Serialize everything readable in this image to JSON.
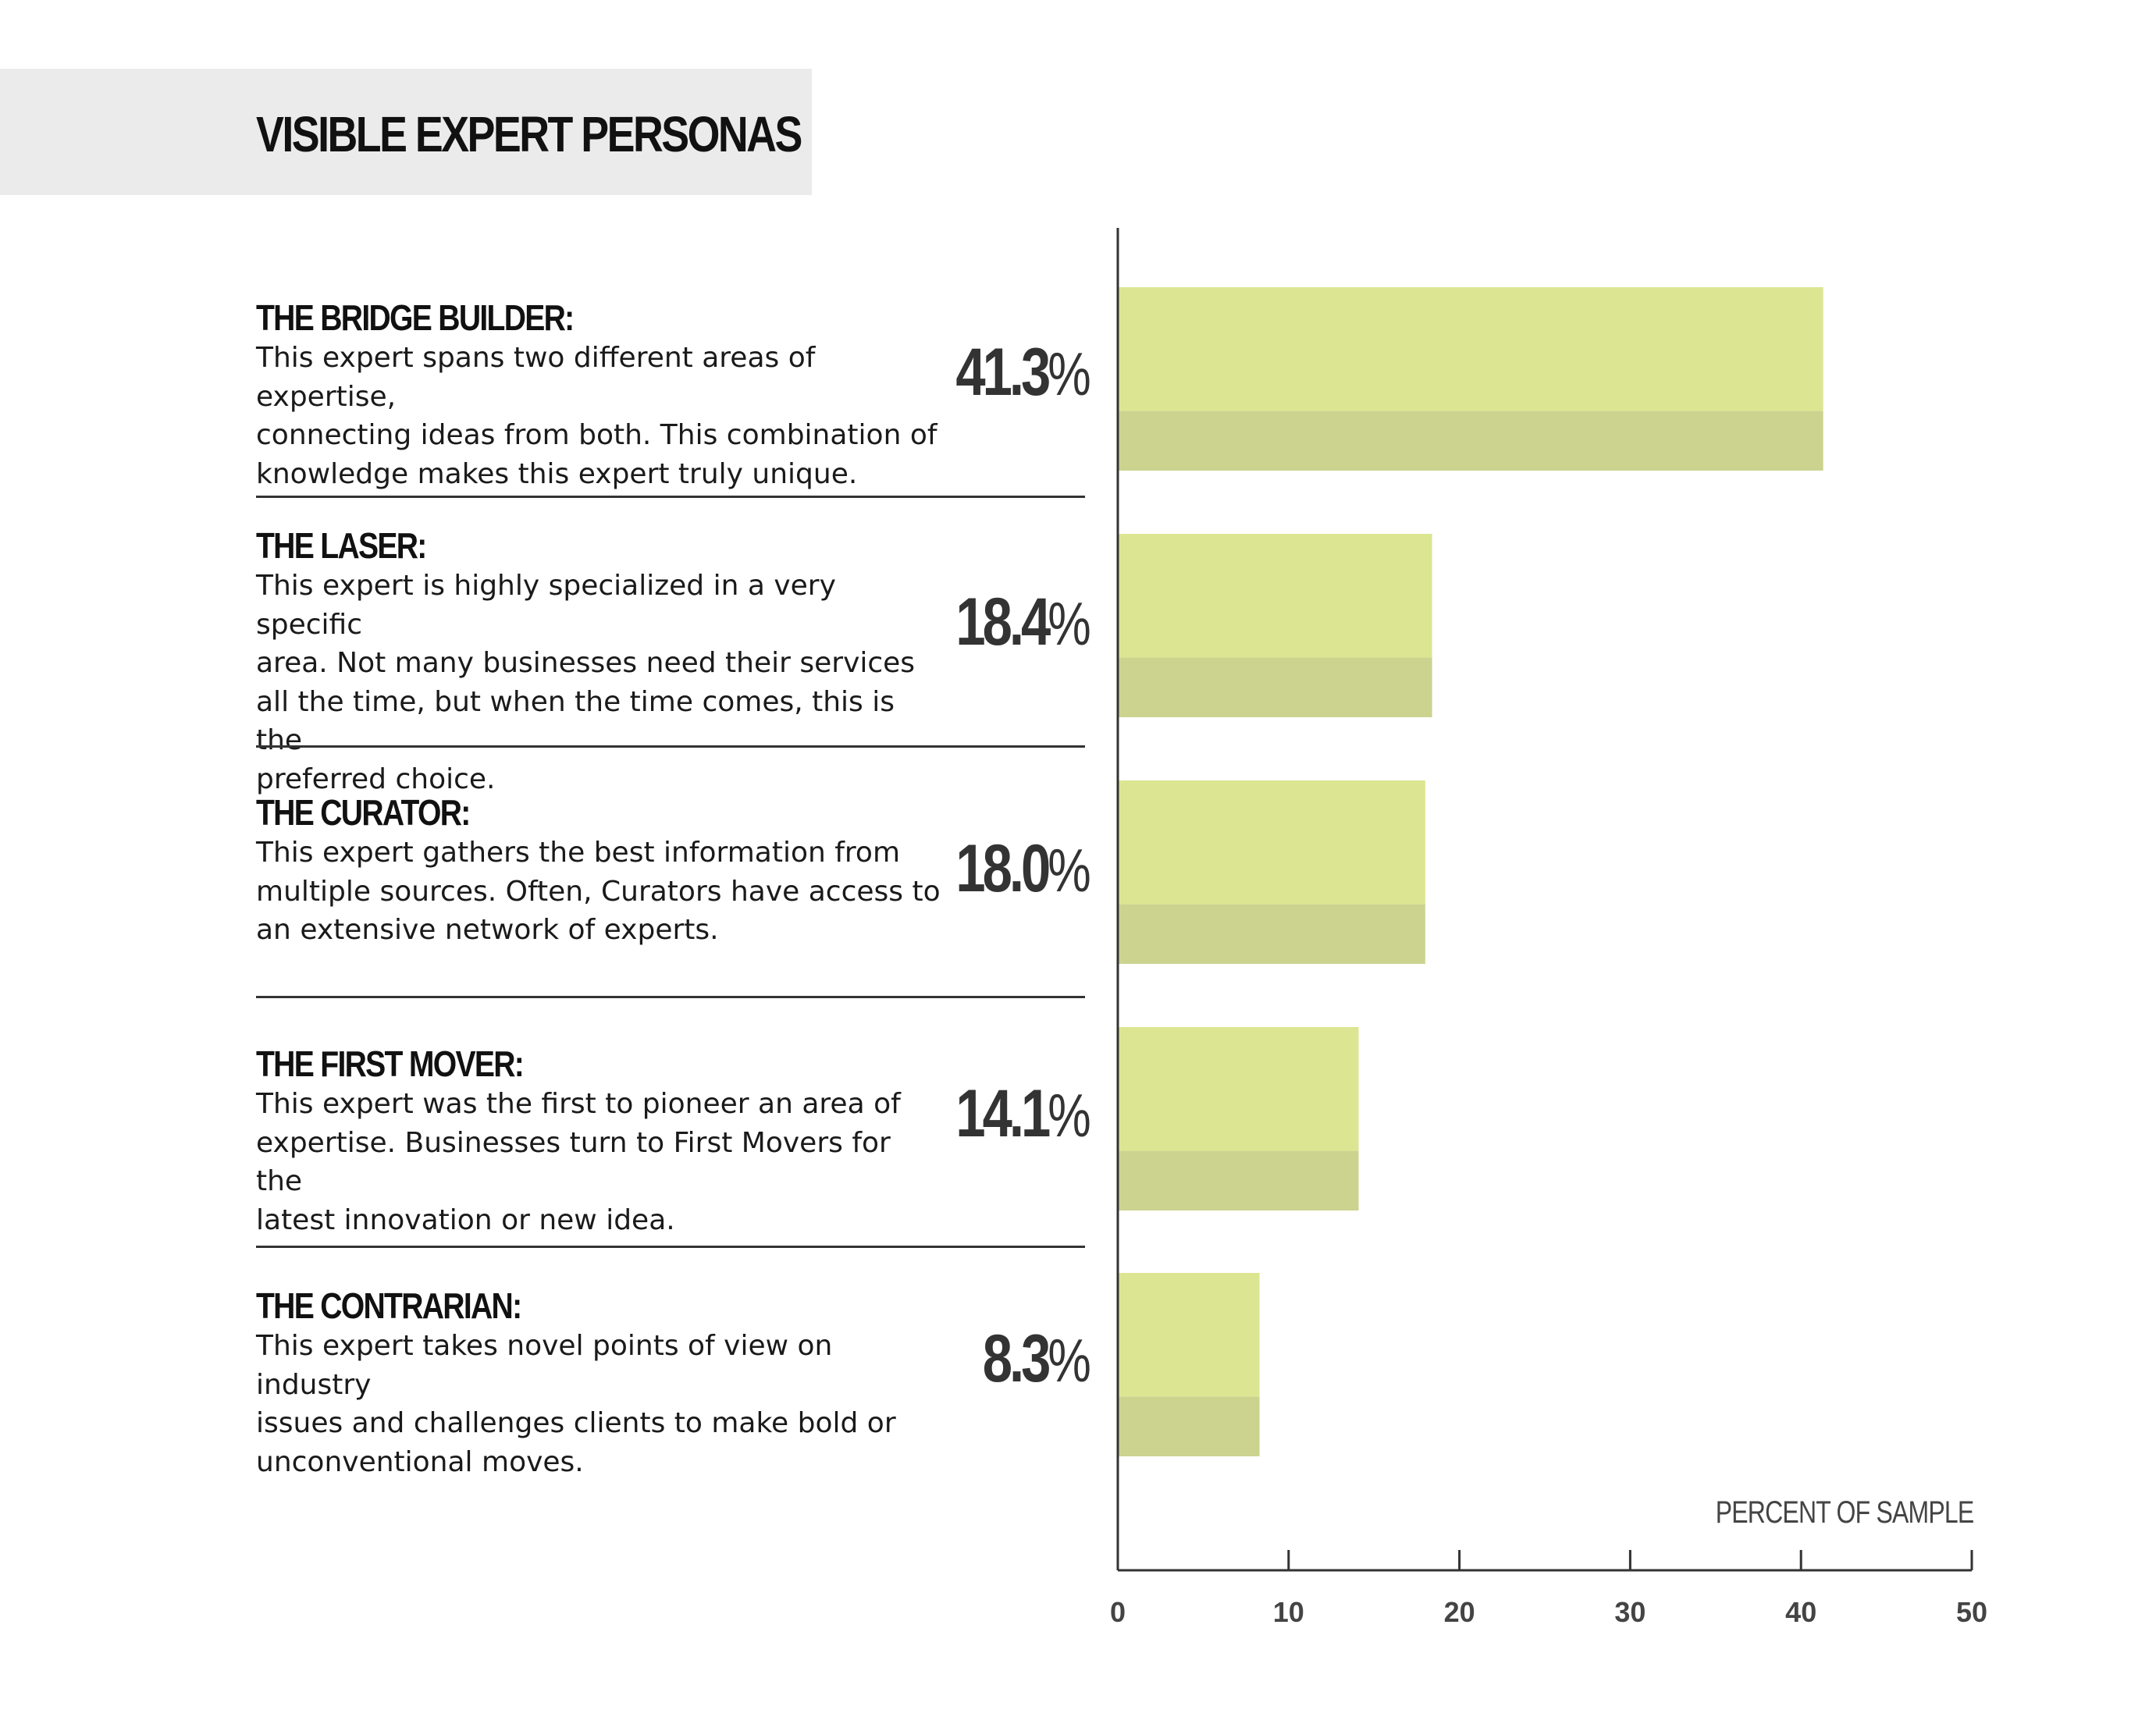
{
  "title": "VISIBLE EXPERT PERSONAS",
  "personas": [
    {
      "name": "THE BRIDGE BUILDER:",
      "desc": [
        "This expert spans two different areas of expertise,",
        "connecting ideas from both. This combination of",
        "knowledge makes this expert truly unique."
      ],
      "pct": "41.3",
      "pct_symbol": "%"
    },
    {
      "name": "THE LASER:",
      "desc": [
        "This expert is highly specialized in a very specific",
        "area. Not many businesses need their services",
        "all the time, but when the time comes, this is the",
        "preferred choice."
      ],
      "pct": "18.4",
      "pct_symbol": "%"
    },
    {
      "name": "THE CURATOR:",
      "desc": [
        "This expert gathers the best information from",
        "multiple sources. Often, Curators have access to",
        "an extensive network of experts."
      ],
      "pct": "18.0",
      "pct_symbol": "%"
    },
    {
      "name": "THE FIRST MOVER:",
      "desc": [
        "This expert was the first to pioneer an area of",
        "expertise. Businesses turn to First Movers for the",
        "latest innovation or new idea."
      ],
      "pct": "14.1",
      "pct_symbol": "%"
    },
    {
      "name": "THE CONTRARIAN:",
      "desc": [
        "This expert takes novel points of view on industry",
        "issues and challenges clients to make bold or",
        "unconventional moves."
      ],
      "pct": "8.3",
      "pct_symbol": "%"
    }
  ],
  "chart_data": {
    "type": "bar",
    "orientation": "horizontal",
    "categories": [
      "THE BRIDGE BUILDER",
      "THE LASER",
      "THE CURATOR",
      "THE FIRST MOVER",
      "THE CONTRARIAN"
    ],
    "values": [
      41.3,
      18.4,
      18.0,
      14.1,
      8.3
    ],
    "xlabel": "PERCENT OF SAMPLE",
    "xlim": [
      0,
      50
    ],
    "xticks": [
      "0",
      "10",
      "20",
      "30",
      "40",
      "50"
    ],
    "grid": false,
    "colors": {
      "bar_top": "#dce591",
      "bar_bottom": "#cbd38f",
      "axis": "#333333",
      "tick_label": "#444444"
    }
  }
}
